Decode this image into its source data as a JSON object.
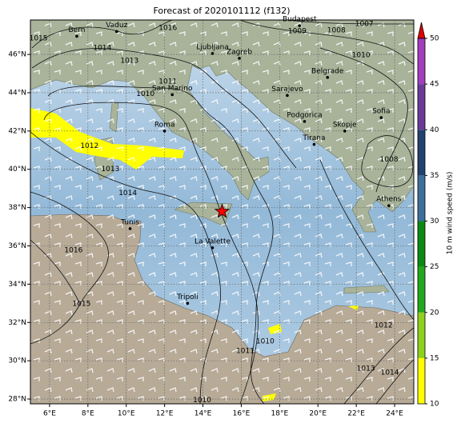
{
  "map": {
    "title": "Forecast of 2020101112 (f132)",
    "lon_lim": [
      5,
      25
    ],
    "lat_lim": [
      27.75,
      47.8
    ],
    "lon_ticks": [
      {
        "value": 6,
        "label": "6°E"
      },
      {
        "value": 8,
        "label": "8°E"
      },
      {
        "value": 10,
        "label": "10°E"
      },
      {
        "value": 12,
        "label": "12°E"
      },
      {
        "value": 14,
        "label": "14°E"
      },
      {
        "value": 16,
        "label": "16°E"
      },
      {
        "value": 18,
        "label": "18°E"
      },
      {
        "value": 20,
        "label": "20°E"
      },
      {
        "value": 22,
        "label": "22°E"
      },
      {
        "value": 24,
        "label": "24°E"
      }
    ],
    "lat_ticks": [
      {
        "value": 28,
        "label": "28°N"
      },
      {
        "value": 30,
        "label": "30°N"
      },
      {
        "value": 32,
        "label": "32°N"
      },
      {
        "value": 34,
        "label": "34°N"
      },
      {
        "value": 36,
        "label": "36°N"
      },
      {
        "value": 38,
        "label": "38°N"
      },
      {
        "value": 40,
        "label": "40°N"
      },
      {
        "value": 42,
        "label": "42°N"
      },
      {
        "value": 44,
        "label": "44°N"
      },
      {
        "value": 46,
        "label": "46°N"
      }
    ],
    "grid": true,
    "cities": [
      {
        "name": "Bern",
        "lon": 7.42,
        "lat": 46.95
      },
      {
        "name": "Vaduz",
        "lon": 9.5,
        "lat": 47.2
      },
      {
        "name": "Budapest",
        "lon": 19.04,
        "lat": 47.5
      },
      {
        "name": "Ljubljana",
        "lon": 14.5,
        "lat": 46.05
      },
      {
        "name": "Zagreb",
        "lon": 15.9,
        "lat": 45.8
      },
      {
        "name": "San Marino",
        "lon": 12.4,
        "lat": 43.9
      },
      {
        "name": "Belgrade",
        "lon": 20.5,
        "lat": 44.8
      },
      {
        "name": "Sarajevo",
        "lon": 18.4,
        "lat": 43.86
      },
      {
        "name": "Podgorica",
        "lon": 19.3,
        "lat": 42.5
      },
      {
        "name": "Skopje",
        "lon": 21.4,
        "lat": 42.0
      },
      {
        "name": "Sofia",
        "lon": 23.3,
        "lat": 42.7
      },
      {
        "name": "Roma",
        "lon": 12.0,
        "lat": 42.0
      },
      {
        "name": "Tirana",
        "lon": 19.8,
        "lat": 41.3
      },
      {
        "name": "Athens",
        "lon": 23.7,
        "lat": 38.1
      },
      {
        "name": "Tunis",
        "lon": 10.2,
        "lat": 36.9
      },
      {
        "name": "La Valette",
        "lon": 14.5,
        "lat": 35.9
      },
      {
        "name": "Tripoli",
        "lon": 13.2,
        "lat": 33.0
      }
    ],
    "isobar_labels": [
      {
        "label": "1015",
        "lon": 5.42,
        "lat": 46.84
      },
      {
        "label": "1014",
        "lon": 8.75,
        "lat": 46.34
      },
      {
        "label": "1013",
        "lon": 10.17,
        "lat": 45.67
      },
      {
        "label": "1016",
        "lon": 12.17,
        "lat": 47.38
      },
      {
        "label": "1011",
        "lon": 12.17,
        "lat": 44.59
      },
      {
        "label": "1010",
        "lon": 11.0,
        "lat": 43.93
      },
      {
        "label": "1012",
        "lon": 8.08,
        "lat": 41.22
      },
      {
        "label": "1013",
        "lon": 9.17,
        "lat": 40.01
      },
      {
        "label": "1014",
        "lon": 10.08,
        "lat": 38.76
      },
      {
        "label": "1016",
        "lon": 7.25,
        "lat": 35.76
      },
      {
        "label": "1015",
        "lon": 7.67,
        "lat": 32.97
      },
      {
        "label": "1011",
        "lon": 16.21,
        "lat": 30.51
      },
      {
        "label": "1010",
        "lon": 17.25,
        "lat": 31.01
      },
      {
        "label": "1010",
        "lon": 13.96,
        "lat": 27.93
      },
      {
        "label": "1009",
        "lon": 18.92,
        "lat": 47.22
      },
      {
        "label": "1008",
        "lon": 20.96,
        "lat": 47.26
      },
      {
        "label": "1007",
        "lon": 22.42,
        "lat": 47.59
      },
      {
        "label": "1010",
        "lon": 22.25,
        "lat": 45.97
      },
      {
        "label": "1008",
        "lon": 23.71,
        "lat": 40.51
      },
      {
        "label": "1012",
        "lon": 23.42,
        "lat": 31.84
      },
      {
        "label": "1013",
        "lon": 22.5,
        "lat": 29.59
      },
      {
        "label": "1014",
        "lon": 23.75,
        "lat": 29.38
      }
    ],
    "marker": {
      "lon": 15.0,
      "lat": 37.8,
      "color": "#ff0000"
    },
    "colorbar": {
      "label": "10 m wind speed (m/s)",
      "lim": [
        10,
        50
      ],
      "ticks": [
        10,
        15,
        20,
        25,
        30,
        35,
        40,
        45,
        50
      ],
      "colors": [
        "#ffff00",
        "#8fd11a",
        "#22a81c",
        "#0b8a12",
        "#3d6f9c",
        "#22426f",
        "#6a3a98",
        "#a23dbd"
      ],
      "extend_color": "#e00000"
    }
  }
}
